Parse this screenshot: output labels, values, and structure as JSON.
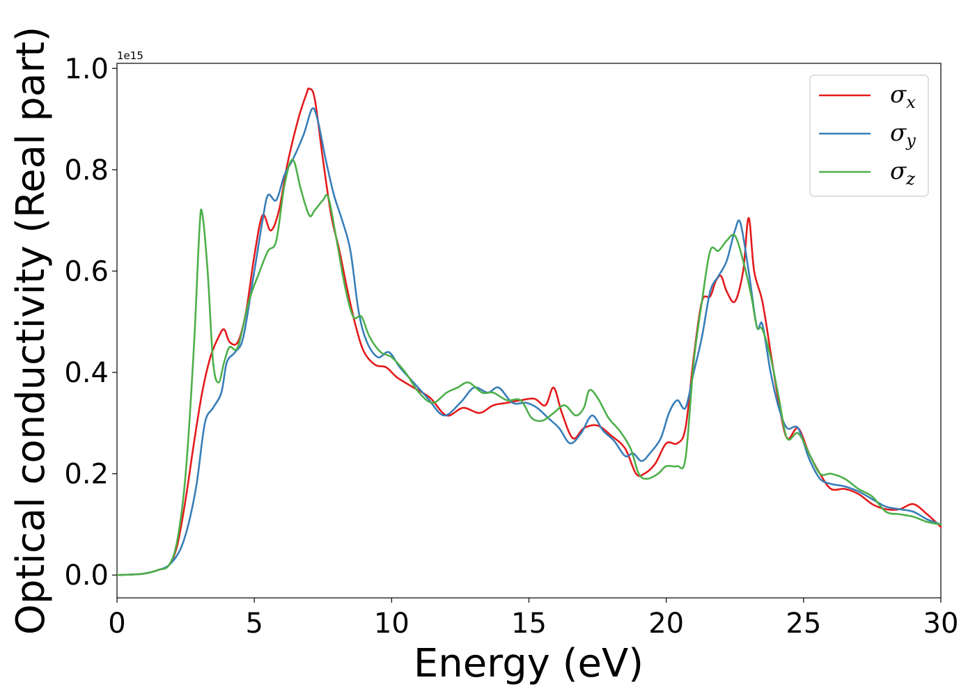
{
  "chart_data": {
    "type": "line",
    "title": "",
    "xlabel": "Energy (eV)",
    "ylabel": "Optical conductivity (Real part)",
    "y_offset_text": "1e15",
    "y_multiplier": 1000000000000000.0,
    "xlim": [
      0,
      30
    ],
    "ylim": [
      -0.045,
      1.01
    ],
    "x_ticks": [
      0,
      5,
      10,
      15,
      20,
      25,
      30
    ],
    "x_tick_labels": [
      "0",
      "5",
      "10",
      "15",
      "20",
      "25",
      "30"
    ],
    "y_ticks": [
      0.0,
      0.2,
      0.4,
      0.6,
      0.8,
      1.0
    ],
    "y_tick_labels": [
      "0.0",
      "0.2",
      "0.4",
      "0.6",
      "0.8",
      "1.0"
    ],
    "grid": false,
    "legend_position": "top-right",
    "series": [
      {
        "name": "σx",
        "symbol": "σ",
        "subscript": "x",
        "color": "#e41a1c",
        "x": [
          0,
          0.5,
          1.0,
          1.5,
          1.9,
          2.2,
          2.5,
          2.8,
          3.1,
          3.4,
          3.7,
          3.9,
          4.1,
          4.4,
          4.7,
          5.0,
          5.3,
          5.6,
          5.9,
          6.2,
          6.6,
          6.9,
          7.0,
          7.2,
          7.5,
          7.8,
          8.1,
          8.4,
          8.7,
          9.0,
          9.4,
          9.8,
          10.2,
          10.8,
          11.4,
          12.0,
          12.6,
          13.2,
          13.7,
          14.2,
          14.7,
          15.2,
          15.6,
          15.9,
          16.2,
          16.6,
          17.0,
          17.5,
          18.0,
          18.5,
          18.9,
          19.2,
          19.6,
          20.0,
          20.4,
          20.7,
          21.0,
          21.3,
          21.6,
          21.8,
          22.0,
          22.2,
          22.5,
          22.8,
          23.0,
          23.2,
          23.5,
          23.8,
          24.1,
          24.4,
          24.8,
          25.2,
          25.6,
          26.0,
          26.5,
          27.0,
          27.5,
          28.0,
          28.5,
          29.0,
          29.5,
          30.0
        ],
        "y": [
          0,
          0.001,
          0.003,
          0.01,
          0.02,
          0.06,
          0.15,
          0.26,
          0.36,
          0.43,
          0.47,
          0.485,
          0.46,
          0.46,
          0.52,
          0.63,
          0.71,
          0.68,
          0.72,
          0.81,
          0.9,
          0.95,
          0.96,
          0.94,
          0.82,
          0.71,
          0.64,
          0.56,
          0.49,
          0.44,
          0.415,
          0.41,
          0.39,
          0.37,
          0.35,
          0.315,
          0.33,
          0.32,
          0.335,
          0.34,
          0.345,
          0.348,
          0.335,
          0.37,
          0.32,
          0.27,
          0.29,
          0.295,
          0.275,
          0.25,
          0.2,
          0.2,
          0.22,
          0.26,
          0.26,
          0.29,
          0.43,
          0.54,
          0.55,
          0.58,
          0.59,
          0.56,
          0.54,
          0.6,
          0.705,
          0.6,
          0.54,
          0.44,
          0.34,
          0.27,
          0.29,
          0.24,
          0.2,
          0.17,
          0.17,
          0.16,
          0.14,
          0.13,
          0.13,
          0.14,
          0.12,
          0.095
        ]
      },
      {
        "name": "σy",
        "symbol": "σ",
        "subscript": "y",
        "color": "#377eb8",
        "x": [
          0,
          0.5,
          1.0,
          1.5,
          1.9,
          2.3,
          2.6,
          2.9,
          3.2,
          3.5,
          3.8,
          4.0,
          4.3,
          4.6,
          5.0,
          5.3,
          5.5,
          5.8,
          6.1,
          6.4,
          6.8,
          7.1,
          7.3,
          7.6,
          7.9,
          8.2,
          8.5,
          8.8,
          9.1,
          9.5,
          9.9,
          10.3,
          10.8,
          11.3,
          11.9,
          12.5,
          13.0,
          13.5,
          13.9,
          14.4,
          14.9,
          15.3,
          15.7,
          16.1,
          16.5,
          16.9,
          17.3,
          17.7,
          18.1,
          18.5,
          18.8,
          19.1,
          19.4,
          19.8,
          20.1,
          20.4,
          20.7,
          21.0,
          21.3,
          21.6,
          21.9,
          22.2,
          22.5,
          22.7,
          23.0,
          23.3,
          23.5,
          23.8,
          24.1,
          24.4,
          24.8,
          25.2,
          25.6,
          26.0,
          26.5,
          27.0,
          27.5,
          28.0,
          28.5,
          29.0,
          29.5,
          30.0
        ],
        "y": [
          0,
          0.001,
          0.003,
          0.01,
          0.02,
          0.05,
          0.1,
          0.18,
          0.3,
          0.33,
          0.36,
          0.42,
          0.44,
          0.47,
          0.6,
          0.7,
          0.75,
          0.74,
          0.79,
          0.82,
          0.87,
          0.92,
          0.9,
          0.82,
          0.75,
          0.7,
          0.64,
          0.52,
          0.46,
          0.43,
          0.44,
          0.41,
          0.38,
          0.35,
          0.315,
          0.34,
          0.37,
          0.36,
          0.37,
          0.34,
          0.34,
          0.33,
          0.31,
          0.29,
          0.26,
          0.28,
          0.315,
          0.285,
          0.265,
          0.235,
          0.24,
          0.225,
          0.24,
          0.27,
          0.32,
          0.345,
          0.33,
          0.4,
          0.47,
          0.56,
          0.59,
          0.62,
          0.68,
          0.695,
          0.6,
          0.49,
          0.495,
          0.4,
          0.33,
          0.29,
          0.29,
          0.23,
          0.19,
          0.18,
          0.175,
          0.165,
          0.15,
          0.135,
          0.13,
          0.125,
          0.11,
          0.1
        ]
      },
      {
        "name": "σz",
        "symbol": "σ",
        "subscript": "z",
        "color": "#4daf4a",
        "x": [
          0,
          0.5,
          1.0,
          1.5,
          1.9,
          2.2,
          2.5,
          2.8,
          3.0,
          3.1,
          3.3,
          3.5,
          3.7,
          3.9,
          4.1,
          4.4,
          4.8,
          5.2,
          5.5,
          5.8,
          6.1,
          6.4,
          6.7,
          7.0,
          7.2,
          7.5,
          7.7,
          8.0,
          8.3,
          8.6,
          8.9,
          9.2,
          9.6,
          10.0,
          10.5,
          11.0,
          11.5,
          12.0,
          12.4,
          12.8,
          13.3,
          13.7,
          14.2,
          14.7,
          15.1,
          15.5,
          15.9,
          16.3,
          16.7,
          17.0,
          17.2,
          17.5,
          17.9,
          18.3,
          18.7,
          19.0,
          19.3,
          19.7,
          20.0,
          20.4,
          20.7,
          21.0,
          21.3,
          21.6,
          21.9,
          22.2,
          22.5,
          22.8,
          23.1,
          23.3,
          23.5,
          23.8,
          24.1,
          24.4,
          24.8,
          25.2,
          25.6,
          26.0,
          26.5,
          27.0,
          27.5,
          28.0,
          28.5,
          29.0,
          29.5,
          30.0
        ],
        "y": [
          0,
          0.001,
          0.003,
          0.01,
          0.02,
          0.07,
          0.2,
          0.45,
          0.68,
          0.715,
          0.6,
          0.42,
          0.38,
          0.42,
          0.45,
          0.45,
          0.54,
          0.6,
          0.64,
          0.66,
          0.77,
          0.82,
          0.76,
          0.71,
          0.72,
          0.74,
          0.745,
          0.66,
          0.57,
          0.51,
          0.51,
          0.47,
          0.44,
          0.43,
          0.4,
          0.36,
          0.34,
          0.36,
          0.37,
          0.38,
          0.36,
          0.36,
          0.345,
          0.345,
          0.31,
          0.305,
          0.32,
          0.335,
          0.315,
          0.33,
          0.365,
          0.35,
          0.31,
          0.285,
          0.25,
          0.2,
          0.19,
          0.2,
          0.215,
          0.215,
          0.23,
          0.42,
          0.54,
          0.64,
          0.64,
          0.66,
          0.67,
          0.62,
          0.55,
          0.49,
          0.485,
          0.43,
          0.35,
          0.27,
          0.28,
          0.24,
          0.2,
          0.2,
          0.19,
          0.17,
          0.155,
          0.125,
          0.12,
          0.115,
          0.105,
          0.1
        ]
      }
    ]
  }
}
